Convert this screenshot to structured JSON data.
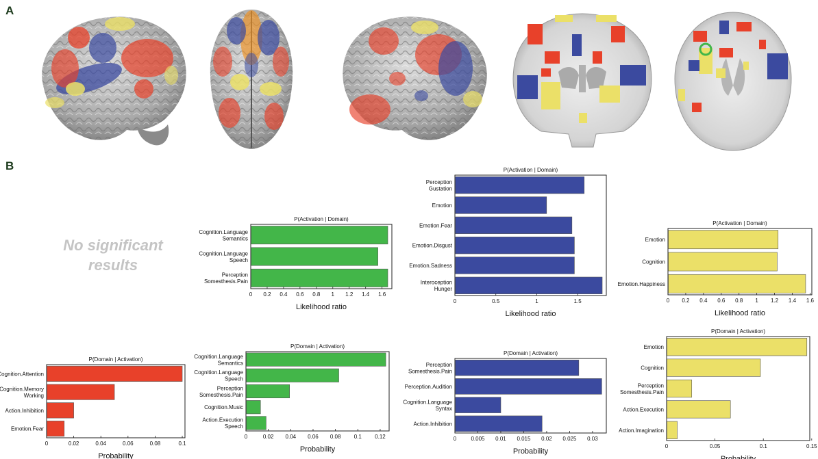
{
  "figure": {
    "panel_a_label": "A",
    "panel_b_label": "B",
    "no_results_text": "No significant results"
  },
  "colors": {
    "red": "#e8412a",
    "green": "#43b649",
    "blue": "#3b4a9f",
    "yellow": "#ebe068",
    "letter": "#1d3b1d"
  },
  "brain_images": [
    {
      "view": "left lateral"
    },
    {
      "view": "superior"
    },
    {
      "view": "right lateral"
    },
    {
      "view": "coronal slice"
    },
    {
      "view": "axial slice"
    }
  ],
  "chart_data": [
    {
      "id": "green-lr",
      "type": "bar",
      "orientation": "horizontal",
      "color": "#43b649",
      "title": "P(Activation | Domain)",
      "xlabel": "Likelihood ratio",
      "categories": [
        [
          "Cognition.Language",
          "Semantics"
        ],
        [
          "Cognition.Language",
          "Speech"
        ],
        [
          "Perception",
          "Somesthesis.Pain"
        ]
      ],
      "values": [
        1.67,
        1.55,
        1.67
      ],
      "xlim": [
        0,
        1.72
      ],
      "ticks": [
        0,
        0.2,
        0.4,
        0.6,
        0.8,
        1,
        1.2,
        1.4,
        1.6
      ],
      "tick_labels": [
        "0",
        "0.2",
        "0.4",
        "0.6",
        "0.8",
        "1",
        "1.2",
        "1.4",
        "1.6"
      ]
    },
    {
      "id": "blue-lr",
      "type": "bar",
      "orientation": "horizontal",
      "color": "#3b4a9f",
      "title": "P(Activation | Domain)",
      "xlabel": "Likelihood ratio",
      "categories": [
        [
          "Perception",
          "Gustation"
        ],
        [
          "Emotion"
        ],
        [
          "Emotion.Fear"
        ],
        [
          "Emotion.Disgust"
        ],
        [
          "Emotion.Sadness"
        ],
        [
          "Interoception",
          "Hunger"
        ]
      ],
      "values": [
        1.58,
        1.12,
        1.43,
        1.46,
        1.46,
        1.8
      ],
      "xlim": [
        0,
        1.85
      ],
      "ticks": [
        0,
        0.5,
        1,
        1.5
      ],
      "tick_labels": [
        "0",
        "0.5",
        "1",
        "1.5"
      ]
    },
    {
      "id": "yellow-lr",
      "type": "bar",
      "orientation": "horizontal",
      "color": "#ebe068",
      "title": "P(Activation | Domain)",
      "xlabel": "Likelihood ratio",
      "categories": [
        [
          "Emotion"
        ],
        [
          "Cognition"
        ],
        [
          "Emotion.Happiness"
        ]
      ],
      "values": [
        1.24,
        1.23,
        1.55
      ],
      "xlim": [
        0,
        1.62
      ],
      "ticks": [
        0,
        0.2,
        0.4,
        0.6,
        0.8,
        1,
        1.2,
        1.4,
        1.6
      ],
      "tick_labels": [
        "0",
        "0.2",
        "0.4",
        "0.6",
        "0.8",
        "1",
        "1.2",
        "1.4",
        "1.6"
      ]
    },
    {
      "id": "red-prob",
      "type": "bar",
      "orientation": "horizontal",
      "color": "#e8412a",
      "title": "P(Domain | Activation)",
      "xlabel": "Probability",
      "categories": [
        [
          "Cognition.Attention"
        ],
        [
          "Cognition.Memory",
          "Working"
        ],
        [
          "Action.Inhibition"
        ],
        [
          "Emotion.Fear"
        ]
      ],
      "values": [
        0.1,
        0.05,
        0.02,
        0.013
      ],
      "xlim": [
        0,
        0.102
      ],
      "ticks": [
        0,
        0.02,
        0.04,
        0.06,
        0.08,
        0.1
      ],
      "tick_labels": [
        "0",
        "0.02",
        "0.04",
        "0.06",
        "0.08",
        "0.1"
      ]
    },
    {
      "id": "green-prob",
      "type": "bar",
      "orientation": "horizontal",
      "color": "#43b649",
      "title": "P(Domain | Activation)",
      "xlabel": "Probability",
      "categories": [
        [
          "Cognition.Language",
          "Semantics"
        ],
        [
          "Cognition.Language",
          "Speech"
        ],
        [
          "Perception",
          "Somesthesis.Pain"
        ],
        [
          "Cognition.Music"
        ],
        [
          "Action.Execution",
          "Speech"
        ]
      ],
      "values": [
        0.125,
        0.083,
        0.039,
        0.013,
        0.018
      ],
      "xlim": [
        0,
        0.128
      ],
      "ticks": [
        0,
        0.02,
        0.04,
        0.06,
        0.08,
        0.1,
        0.12
      ],
      "tick_labels": [
        "0",
        "0.02",
        "0.04",
        "0.06",
        "0.08",
        "0.1",
        "0.12"
      ]
    },
    {
      "id": "blue-prob",
      "type": "bar",
      "orientation": "horizontal",
      "color": "#3b4a9f",
      "title": "P(Domain | Activation)",
      "xlabel": "Probability",
      "categories": [
        [
          "Perception",
          "Somesthesis.Pain"
        ],
        [
          "Perception.Audition"
        ],
        [
          "Cognition.Language",
          "Syntax"
        ],
        [
          "Action.Inhibition"
        ]
      ],
      "values": [
        0.027,
        0.032,
        0.01,
        0.019
      ],
      "xlim": [
        0,
        0.033
      ],
      "ticks": [
        0,
        0.005,
        0.01,
        0.015,
        0.02,
        0.025,
        0.03
      ],
      "tick_labels": [
        "0",
        "0.005",
        "0.01",
        "0.015",
        "0.02",
        "0.025",
        "0.03"
      ]
    },
    {
      "id": "yellow-prob",
      "type": "bar",
      "orientation": "horizontal",
      "color": "#ebe068",
      "title": "P(Domain | Activation)",
      "xlabel": "Probability",
      "categories": [
        [
          "Emotion"
        ],
        [
          "Cognition"
        ],
        [
          "Perception",
          "Somesthesis.Pain"
        ],
        [
          "Action.Execution"
        ],
        [
          "Action.Imagination"
        ]
      ],
      "values": [
        0.145,
        0.097,
        0.026,
        0.066,
        0.011
      ],
      "xlim": [
        0,
        0.148
      ],
      "ticks": [
        0,
        0.05,
        0.1,
        0.15
      ],
      "tick_labels": [
        "0",
        "0.05",
        "0.1",
        "0.15"
      ]
    }
  ]
}
